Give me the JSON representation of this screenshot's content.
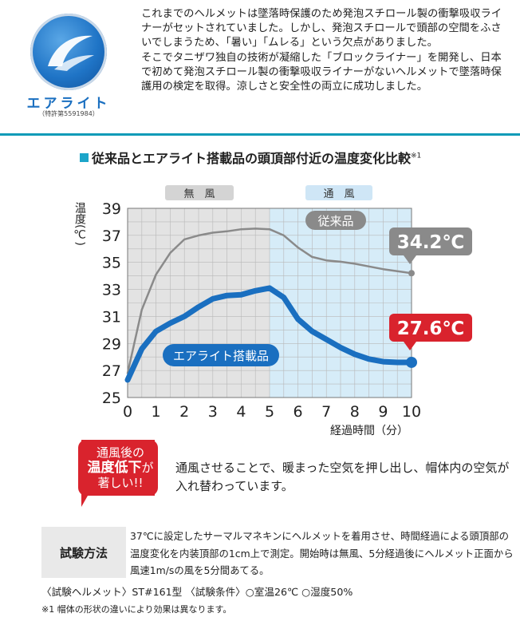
{
  "logo": {
    "name": "エアライト",
    "patent": "（特許第5591984）"
  },
  "intro": {
    "p1": "これまでのヘルメットは墜落時保護のため発泡スチロール製の衝撃吸収ライナーがセットされていました。しかし、発泡スチロールで頭部の空間をふさいでしまうため、「暑い」「ムレる」という欠点がありました。",
    "p2": "そこでタニザワ独自の技術が凝縮した「ブロックライナー」を開発し、日本で初めて発泡スチロール製の衝撃吸収ライナーがないヘルメットで墜落時保護用の検定を取得。涼しさと安全性の両立に成功しました。"
  },
  "chart_title": {
    "text": "従来品とエアライト搭載品の頭頂部付近の温度変化比較",
    "note": "※1"
  },
  "chart_data": {
    "type": "line",
    "x": [
      0,
      0.5,
      1,
      1.5,
      2,
      2.5,
      3,
      3.5,
      4,
      4.5,
      5,
      5.5,
      6,
      6.5,
      7,
      7.5,
      8,
      8.5,
      9,
      9.5,
      10
    ],
    "series": [
      {
        "name": "従来品",
        "color": "#8a8a8a",
        "values": [
          26.8,
          31.5,
          34.1,
          35.7,
          36.7,
          37.0,
          37.2,
          37.3,
          37.45,
          37.5,
          37.45,
          37.0,
          36.1,
          35.4,
          35.15,
          35.05,
          34.9,
          34.7,
          34.5,
          34.35,
          34.2
        ]
      },
      {
        "name": "エアライト搭載品",
        "color": "#1a6fc0",
        "values": [
          26.3,
          28.6,
          29.9,
          30.5,
          31.0,
          31.7,
          32.3,
          32.55,
          32.6,
          32.9,
          33.1,
          32.4,
          30.8,
          29.9,
          29.3,
          28.7,
          28.2,
          27.85,
          27.65,
          27.6,
          27.6
        ]
      }
    ],
    "end_labels": [
      "34.2℃",
      "27.6℃"
    ],
    "phase_labels": [
      "無　風",
      "通　風"
    ],
    "fan_start": 5,
    "xlim": [
      0,
      10
    ],
    "ylim": [
      25,
      39
    ],
    "xticks": [
      "0",
      "1",
      "2",
      "3",
      "4",
      "5",
      "6",
      "7",
      "8",
      "9",
      "10"
    ],
    "yticks": [
      "25",
      "27",
      "29",
      "31",
      "33",
      "35",
      "37",
      "39"
    ],
    "xlabel": "経過時間（分）",
    "ylabel": "温度(℃)",
    "grid": true,
    "colors": {
      "no_wind_bg": "#e3e3e3",
      "wind_bg": "#d6ecf8",
      "callout_red": "#d9232d"
    }
  },
  "callout": {
    "line1": "通風後の",
    "line2": "温度低下",
    "line2b": "が",
    "line3": "著しい!!"
  },
  "note": "通風させることで、暖まった空気を押し出し、帽体内の空気が入れ替わっています。",
  "method": {
    "label": "試験方法",
    "text": "37℃に設定したサーマルマネキンにヘルメットを着用させ、時間経過による頭頂部の温度変化を内装頂部の1cm上で測定。開始時は無風、5分経過後にヘルメット正面から風速1m/sの風を5分間あてる。"
  },
  "conditions": "〈試験ヘルメット〉ST#161型 〈試験条件〉○室温26℃ ○湿度50%",
  "footnote": "※1 帽体の形状の違いにより効果は異なります。"
}
